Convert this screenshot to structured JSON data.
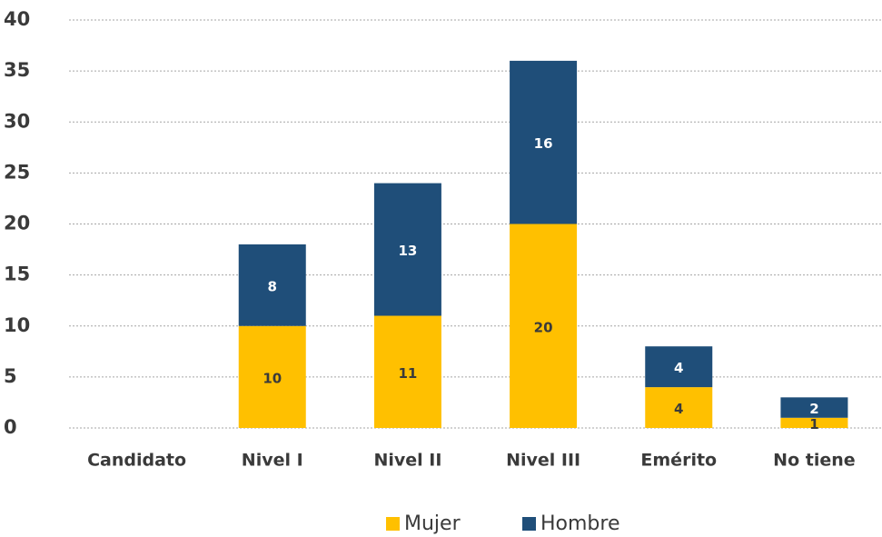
{
  "chart_data": {
    "type": "stacked_bar",
    "categories": [
      "Candidato",
      "Nivel I",
      "Nivel II",
      "Nivel III",
      "Emérito",
      "No tiene"
    ],
    "series": [
      {
        "name": "Mujer",
        "color": "#ffc000",
        "label_color": "#3a3a3a",
        "values": [
          null,
          10,
          11,
          20,
          4,
          1
        ]
      },
      {
        "name": "Hombre",
        "color": "#1f4e79",
        "label_color": "#ffffff",
        "values": [
          null,
          8,
          13,
          16,
          4,
          2
        ]
      }
    ],
    "ylim": [
      0,
      40
    ],
    "yticks": [
      0,
      5,
      10,
      15,
      20,
      25,
      30,
      35,
      40
    ],
    "grid": true,
    "legend": "bottom"
  }
}
